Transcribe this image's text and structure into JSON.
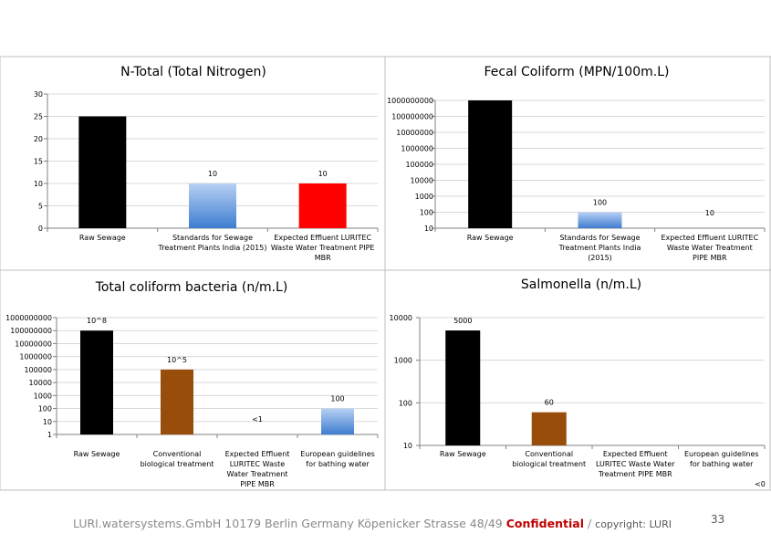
{
  "colors": {
    "black": "#000000",
    "gradient_blue_top": "#b7d0f3",
    "gradient_blue_bottom": "#3f7dd0",
    "red": "#ff0000",
    "brown": "#994d0b"
  },
  "chart_data": [
    {
      "type": "bar",
      "title": "N-Total (Total Nitrogen)",
      "scale": "linear",
      "ylim": [
        0,
        30
      ],
      "yticks": [
        "0",
        "5",
        "10",
        "15",
        "20",
        "25",
        "30"
      ],
      "categories": [
        "Raw Sewage",
        "Standards for Sewage Treatment Plants India (2015)",
        "Expected Effluent LURITEC Waste Water Treatment PIPE MBR"
      ],
      "category_lines": [
        [
          "Raw Sewage"
        ],
        [
          "Standards for Sewage",
          "Treatment Plants India (2015)"
        ],
        [
          "Expected Effluent LURITEC",
          "Waste Water Treatment PIPE",
          "MBR"
        ]
      ],
      "values": [
        25,
        10,
        10
      ],
      "data_labels": [
        "",
        "10",
        "10"
      ],
      "fills": [
        "black",
        "gradient",
        "red"
      ]
    },
    {
      "type": "bar",
      "title": "Fecal Coliform (MPN/100m.L)",
      "scale": "log",
      "ylim": [
        10,
        1000000000
      ],
      "yticks": [
        "10",
        "100",
        "1000",
        "10000",
        "100000",
        "1000000",
        "10000000",
        "100000000",
        "1000000000"
      ],
      "categories": [
        "Raw Sewage",
        "Standards for Sewage Treatment Plants India (2015)",
        "Expected Effluent LURITEC Waste Water Treatment PIPE MBR"
      ],
      "category_lines": [
        [
          "Raw Sewage"
        ],
        [
          "Standards for Sewage",
          "Treatment Plants India",
          "(2015)"
        ],
        [
          "Expected Effluent LURITEC",
          "Waste Water Treatment",
          "PIPE MBR"
        ]
      ],
      "values": [
        1000000000,
        100,
        10
      ],
      "data_labels": [
        "",
        "100",
        "10"
      ],
      "fills": [
        "black",
        "gradient",
        "none"
      ]
    },
    {
      "type": "bar",
      "title": "Total coliform bacteria (n/m.L)",
      "scale": "log",
      "ylim": [
        1,
        1000000000
      ],
      "yticks": [
        "1",
        "10",
        "100",
        "1000",
        "10000",
        "100000",
        "1000000",
        "10000000",
        "100000000",
        "1000000000"
      ],
      "categories": [
        "Raw Sewage",
        "Conventional biological treatment",
        "Expected Effluent LURITEC Waste Water Treatment PIPE MBR",
        "European guidelines for bathing water"
      ],
      "category_lines": [
        [
          "Raw Sewage"
        ],
        [
          "Conventional",
          "biological treatment"
        ],
        [
          "Expected Effluent",
          "LURITEC Waste",
          "Water Treatment",
          "PIPE MBR"
        ],
        [
          "European guidelines",
          "for bathing water"
        ]
      ],
      "values": [
        100000000,
        100000,
        1,
        100
      ],
      "data_labels": [
        "10^8",
        "10^5",
        "<1",
        "100"
      ],
      "fills": [
        "black",
        "brown",
        "none",
        "gradient"
      ]
    },
    {
      "type": "bar",
      "title": "Salmonella (n/m.L)",
      "scale": "log",
      "ylim": [
        10,
        10000
      ],
      "yticks": [
        "10",
        "100",
        "1000",
        "10000"
      ],
      "categories": [
        "Raw Sewage",
        "Conventional biological treatment",
        "Expected Effluent LURITEC Waste Water Treatment PIPE MBR",
        "European guidelines for bathing water"
      ],
      "category_lines": [
        [
          "Raw Sewage"
        ],
        [
          "Conventional",
          "biological treatment"
        ],
        [
          "Expected Effluent",
          "LURITEC Waste Water",
          "Treatment PIPE MBR"
        ],
        [
          "European guidelines",
          "for bathing water"
        ]
      ],
      "values": [
        5000,
        60,
        10,
        10
      ],
      "data_labels": [
        "5000",
        "60",
        "",
        ""
      ],
      "fills": [
        "black",
        "brown",
        "none",
        "none"
      ],
      "corner_note": "<0"
    }
  ],
  "footer": {
    "company": "LURI.watersystems.GmbH 10179 Berlin Germany Köpenicker Strasse 48/49",
    "confidential": "Confidential",
    "separator": " / ",
    "copyright": "copyright: LURI"
  },
  "page_number": "33"
}
